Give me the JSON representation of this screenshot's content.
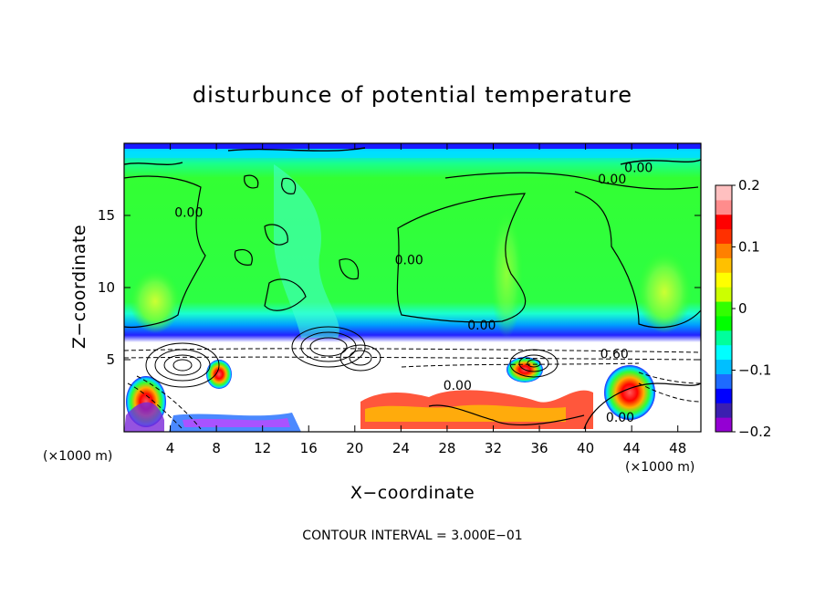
{
  "chart_data": {
    "type": "heatmap",
    "title": "disturbunce of potential temperature",
    "xlabel": "X−coordinate",
    "ylabel": "Z−coordinate",
    "x_unit_left": "(×1000 m)",
    "x_unit_right": "(×1000 m)",
    "xlim": [
      0,
      50
    ],
    "ylim": [
      0,
      20
    ],
    "x_ticks": [
      {
        "value": 4,
        "label": "4"
      },
      {
        "value": 8,
        "label": "8"
      },
      {
        "value": 12,
        "label": "12"
      },
      {
        "value": 16,
        "label": "16"
      },
      {
        "value": 20,
        "label": "20"
      },
      {
        "value": 24,
        "label": "24"
      },
      {
        "value": 28,
        "label": "28"
      },
      {
        "value": 32,
        "label": "32"
      },
      {
        "value": 36,
        "label": "36"
      },
      {
        "value": 40,
        "label": "40"
      },
      {
        "value": 44,
        "label": "44"
      },
      {
        "value": 48,
        "label": "48"
      }
    ],
    "y_ticks": [
      {
        "value": 5,
        "label": "5"
      },
      {
        "value": 10,
        "label": "10"
      },
      {
        "value": 15,
        "label": "15"
      }
    ],
    "colorbar": {
      "range": [
        -0.2,
        0.2
      ],
      "ticks": [
        {
          "value": 0.2,
          "label": "0.2"
        },
        {
          "value": 0.1,
          "label": "0.1"
        },
        {
          "value": 0,
          "label": "0"
        },
        {
          "value": -0.1,
          "label": "−0.1"
        },
        {
          "value": -0.2,
          "label": "−0.2"
        }
      ],
      "colors": [
        "#9400d3",
        "#3b1fb0",
        "#0000ff",
        "#1e6bff",
        "#00bfff",
        "#00ffff",
        "#00ff9c",
        "#00ff00",
        "#33ff00",
        "#ccff00",
        "#ffff00",
        "#ffc000",
        "#ff8000",
        "#ff3000",
        "#ff0000",
        "#ff8c8c",
        "#ffc0c0"
      ]
    },
    "contour_labels": [
      {
        "x": 31,
        "y": 7.1,
        "label": "0.00"
      },
      {
        "x": 24.7,
        "y": 11.6,
        "label": "0.00"
      },
      {
        "x": 5.6,
        "y": 14.9,
        "label": "0.00"
      },
      {
        "x": 42.3,
        "y": 17.2,
        "label": "0.00"
      },
      {
        "x": 44.6,
        "y": 18.0,
        "label": "0.00"
      },
      {
        "x": 42.5,
        "y": 5.1,
        "label": "0.60"
      },
      {
        "x": 28.9,
        "y": 2.9,
        "label": "0.00"
      },
      {
        "x": 43.0,
        "y": 0.7,
        "label": "0.00"
      }
    ],
    "annotation": "CONTOUR INTERVAL = 3.000E−01"
  }
}
